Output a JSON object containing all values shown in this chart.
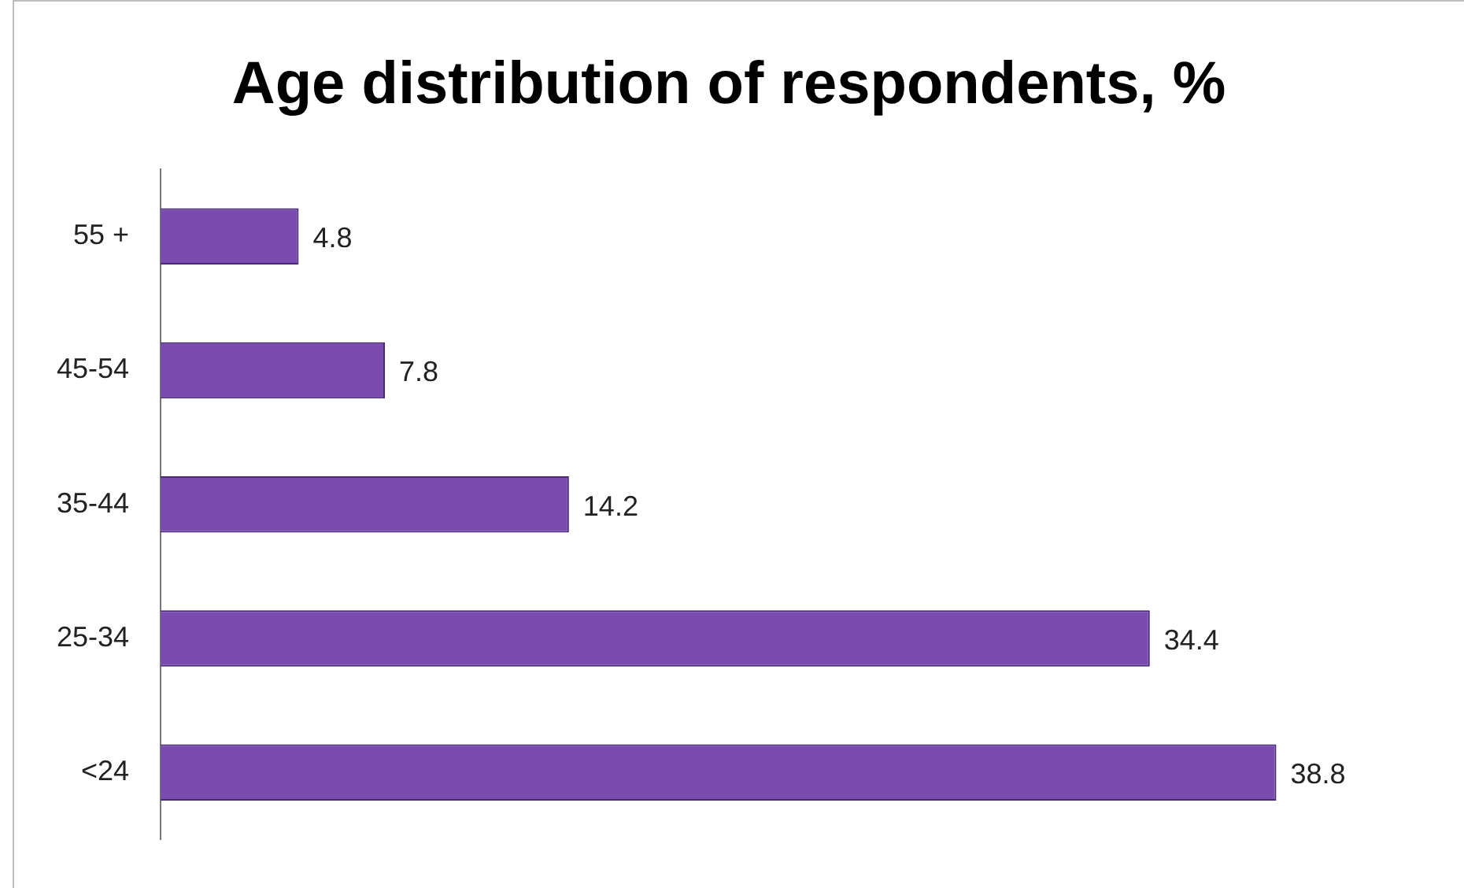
{
  "chart_data": {
    "type": "bar",
    "orientation": "horizontal",
    "title": "Age distribution of respondents, %",
    "categories": [
      "55 +",
      "45-54",
      "35-44",
      "25-34",
      "<24"
    ],
    "values": [
      4.8,
      7.8,
      14.2,
      34.4,
      38.8
    ],
    "color": "#7a4cb0",
    "data_labels": true,
    "legend": false
  }
}
